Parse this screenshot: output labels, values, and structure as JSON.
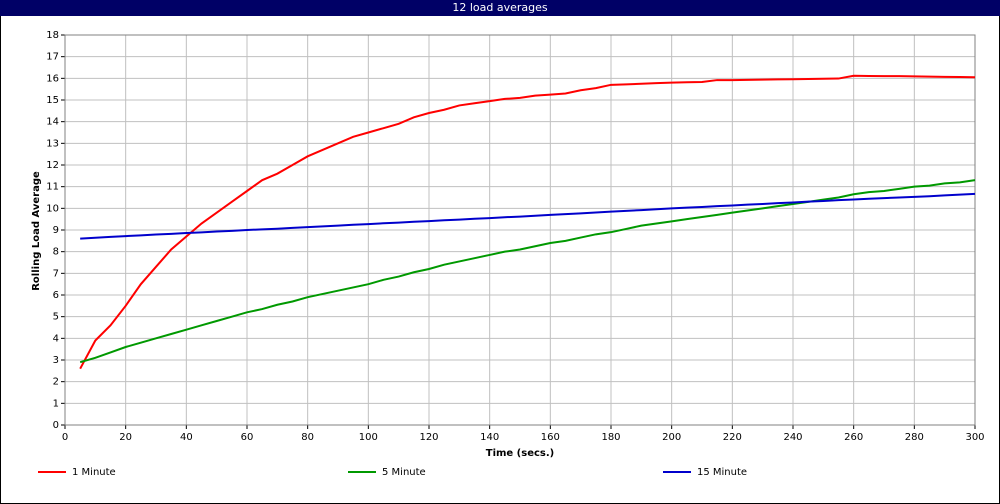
{
  "chart_data": {
    "type": "line",
    "title": "12 load averages",
    "x_label": "Time (secs.)",
    "y_label": "Rolling Load Average",
    "x": [
      5,
      10,
      15,
      20,
      25,
      30,
      35,
      40,
      45,
      50,
      55,
      60,
      65,
      70,
      75,
      80,
      85,
      90,
      95,
      100,
      105,
      110,
      115,
      120,
      125,
      130,
      135,
      140,
      145,
      150,
      155,
      160,
      165,
      170,
      175,
      180,
      185,
      190,
      195,
      200,
      205,
      210,
      215,
      220,
      225,
      230,
      235,
      240,
      245,
      250,
      255,
      260,
      265,
      270,
      275,
      280,
      285,
      290,
      295,
      300
    ],
    "series": [
      {
        "name": "1 Minute",
        "color": "#ff0000",
        "values": [
          2.6,
          3.9,
          4.6,
          5.5,
          6.5,
          7.3,
          8.1,
          8.7,
          9.3,
          9.8,
          10.3,
          10.8,
          11.3,
          11.6,
          12.0,
          12.4,
          12.7,
          13.0,
          13.3,
          13.5,
          13.7,
          13.9,
          14.2,
          14.4,
          14.55,
          14.75,
          14.85,
          14.95,
          15.05,
          15.1,
          15.2,
          15.25,
          15.3,
          15.45,
          15.55,
          15.7,
          15.72,
          15.75,
          15.78,
          15.8,
          15.82,
          15.83,
          15.92,
          15.92,
          15.93,
          15.94,
          15.95,
          15.96,
          15.97,
          15.98,
          15.99,
          16.12,
          16.11,
          16.1,
          16.1,
          16.09,
          16.08,
          16.07,
          16.06,
          16.05
        ]
      },
      {
        "name": "5 Minute",
        "color": "#009900",
        "values": [
          2.9,
          3.1,
          3.35,
          3.6,
          3.8,
          4.0,
          4.2,
          4.4,
          4.6,
          4.8,
          5.0,
          5.2,
          5.35,
          5.55,
          5.7,
          5.9,
          6.05,
          6.2,
          6.35,
          6.5,
          6.7,
          6.85,
          7.05,
          7.2,
          7.4,
          7.55,
          7.7,
          7.85,
          8.0,
          8.1,
          8.25,
          8.4,
          8.5,
          8.65,
          8.8,
          8.9,
          9.05,
          9.2,
          9.3,
          9.4,
          9.5,
          9.6,
          9.7,
          9.8,
          9.9,
          10.0,
          10.1,
          10.2,
          10.3,
          10.4,
          10.5,
          10.65,
          10.75,
          10.8,
          10.9,
          11.0,
          11.05,
          11.15,
          11.2,
          11.3
        ]
      },
      {
        "name": "15 Minute",
        "color": "#0000cc",
        "values": [
          8.6,
          8.64,
          8.68,
          8.72,
          8.75,
          8.79,
          8.82,
          8.86,
          8.89,
          8.93,
          8.96,
          9.0,
          9.03,
          9.06,
          9.1,
          9.13,
          9.17,
          9.2,
          9.24,
          9.27,
          9.31,
          9.34,
          9.38,
          9.41,
          9.45,
          9.48,
          9.52,
          9.55,
          9.59,
          9.62,
          9.66,
          9.7,
          9.73,
          9.77,
          9.81,
          9.85,
          9.88,
          9.92,
          9.96,
          10.0,
          10.03,
          10.06,
          10.1,
          10.13,
          10.17,
          10.2,
          10.24,
          10.27,
          10.31,
          10.34,
          10.38,
          10.41,
          10.44,
          10.47,
          10.5,
          10.53,
          10.56,
          10.6,
          10.63,
          10.67
        ]
      }
    ],
    "xlim": [
      0,
      300
    ],
    "xticks": [
      0,
      20,
      40,
      60,
      80,
      100,
      120,
      140,
      160,
      180,
      200,
      220,
      240,
      260,
      280,
      300
    ],
    "ylim": [
      0,
      18
    ],
    "yticks": [
      0,
      1,
      2,
      3,
      4,
      5,
      6,
      7,
      8,
      9,
      10,
      11,
      12,
      13,
      14,
      15,
      16,
      17,
      18
    ],
    "grid": true,
    "legend": "bottom"
  }
}
